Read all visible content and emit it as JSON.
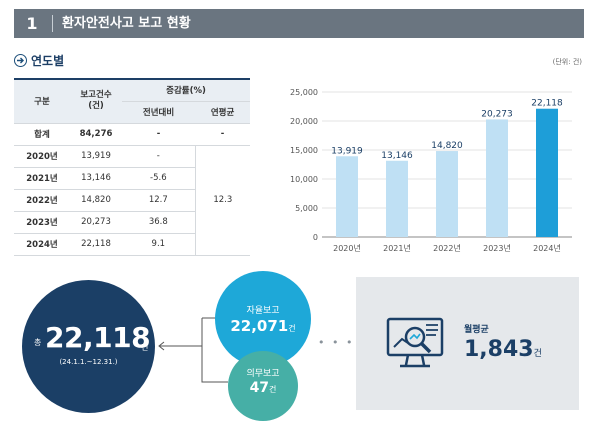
{
  "header": {
    "number": "1",
    "title": "환자안전사고 보고 현황"
  },
  "section": {
    "title": "연도별",
    "unit": "(단위: 건)"
  },
  "table": {
    "headers": {
      "category": "구분",
      "count": "보고건수",
      "count_unit": "(건)",
      "growth": "증감률(%)",
      "yoy": "전년대비",
      "avg": "연평균"
    },
    "total": {
      "label": "합계",
      "count": "84,276",
      "yoy": "-",
      "avg": "-"
    },
    "rows": [
      {
        "year": "2020년",
        "count": "13,919",
        "yoy": "-"
      },
      {
        "year": "2021년",
        "count": "13,146",
        "yoy": "-5.6"
      },
      {
        "year": "2022년",
        "count": "14,820",
        "yoy": "12.7"
      },
      {
        "year": "2023년",
        "count": "20,273",
        "yoy": "36.8"
      },
      {
        "year": "2024년",
        "count": "22,118",
        "yoy": "9.1"
      }
    ],
    "avg_rate": "12.3"
  },
  "chart_data": {
    "type": "bar",
    "categories": [
      "2020년",
      "2021년",
      "2022년",
      "2023년",
      "2024년"
    ],
    "values": [
      13919,
      13146,
      14820,
      20273,
      22118
    ],
    "value_labels": [
      "13,919",
      "13,146",
      "14,820",
      "20,273",
      "22,118"
    ],
    "ylim": [
      0,
      25000
    ],
    "yticks": [
      "0",
      "5,000",
      "10,000",
      "15,000",
      "20,000",
      "25,000"
    ],
    "colors": [
      "#bfe0f4",
      "#bfe0f4",
      "#bfe0f4",
      "#bfe0f4",
      "#1e9ed8"
    ],
    "grid": true
  },
  "summary": {
    "total_prefix": "총",
    "total": "22,118",
    "total_suffix": "건",
    "period": "(24.1.1.~12.31.)",
    "voluntary_label": "자율보고",
    "voluntary_value": "22,071",
    "voluntary_suffix": "건",
    "mandatory_label": "의무보고",
    "mandatory_value": "47",
    "mandatory_suffix": "건",
    "monthly_label": "월평균",
    "monthly_value": "1,843",
    "monthly_suffix": "건"
  }
}
